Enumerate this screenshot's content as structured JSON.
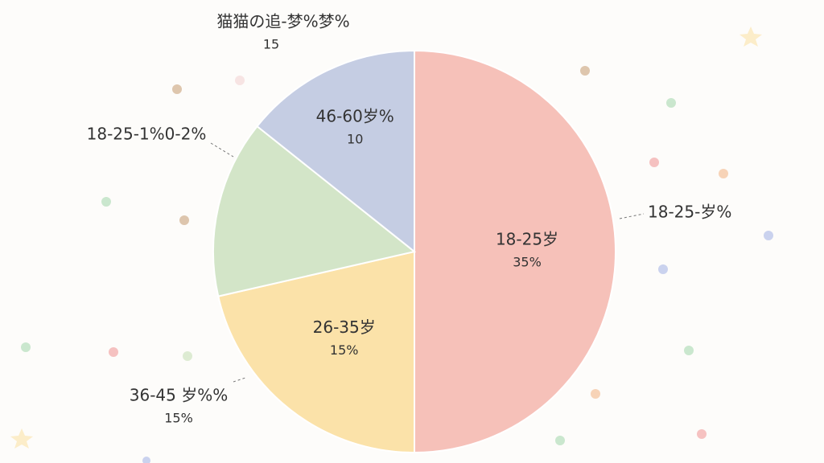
{
  "chart_data": {
    "type": "pie",
    "categories": [
      "18-25岁",
      "26-35岁",
      null,
      "46-60岁%"
    ],
    "values": [
      35,
      15,
      10,
      10
    ],
    "value_labels": [
      "35%",
      "15%",
      null,
      "10"
    ],
    "colors": [
      "#f6c1b9",
      "#fbe2a9",
      "#d3e5c8",
      "#c5cde3"
    ],
    "annotations": [
      {
        "text": "18-25-岁%"
      },
      {
        "text": "36-45 岁%%",
        "sub": "15%"
      },
      {
        "text": "18-25-1%0-2%"
      },
      {
        "text": "猫猫の追-梦%梦%",
        "sub": "15"
      }
    ]
  }
}
